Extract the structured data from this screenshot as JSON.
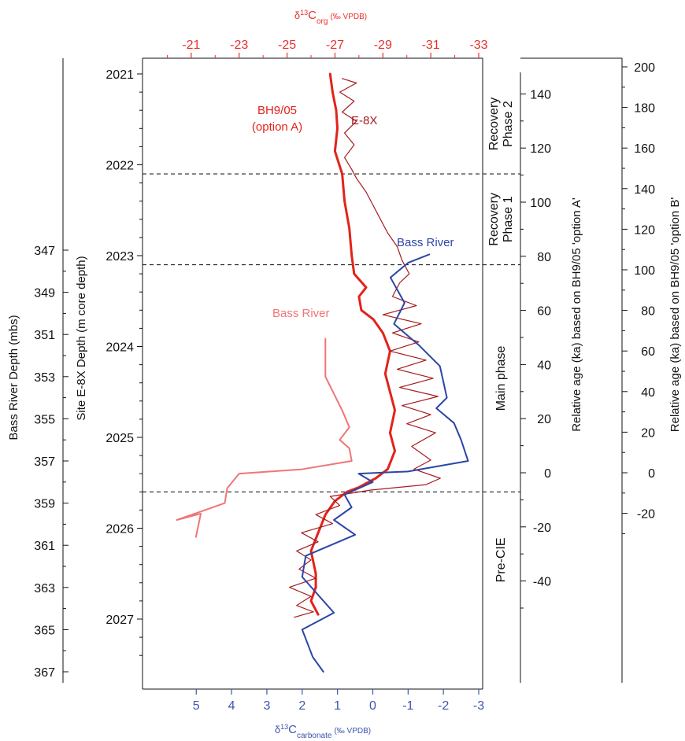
{
  "chart_data": {
    "type": "line",
    "title": "",
    "colors": {
      "bh905": "#e2231a",
      "e8x": "#a51c20",
      "bass_river_carb": "#2b46a8",
      "bass_river_org": "#f07575",
      "top_axis": "#e8302a",
      "bottom_axis": "#3b55b0",
      "ink": "#111111"
    },
    "axes": {
      "top": {
        "label_main": "δ",
        "label_sup": "13",
        "label_c": "C",
        "label_sub": "org",
        "label_unit": "(‰ VPDB)",
        "range": [
          -19,
          -33
        ],
        "ticks": [
          -21,
          -23,
          -25,
          -27,
          -29,
          -31,
          -33
        ],
        "tick_labels": [
          "-21",
          "-23",
          "-25",
          "-27",
          "-29",
          "-31",
          "-33"
        ]
      },
      "bottom": {
        "label_main": "δ",
        "label_sup": "13",
        "label_c": "C",
        "label_sub": "carbonate",
        "label_unit": "(‰ VPDB)",
        "range": [
          6.5,
          -3
        ],
        "ticks": [
          5,
          4,
          3,
          2,
          1,
          0,
          -1,
          -2,
          -3
        ],
        "tick_labels": [
          "5",
          "4",
          "3",
          "2",
          "1",
          "0",
          "-1",
          "-2",
          "-3"
        ]
      },
      "left_outer": {
        "label": "Bass River Depth (mbs)",
        "ticks": [
          347,
          349,
          351,
          353,
          355,
          357,
          359,
          361,
          363,
          365,
          367
        ],
        "tick_labels": [
          "347",
          "349",
          "351",
          "353",
          "355",
          "357",
          "359",
          "361",
          "363",
          "365",
          "367"
        ]
      },
      "left_inner": {
        "label": "Site E-8X Depth (m core depth)",
        "ticks": [
          2021,
          2022,
          2023,
          2024,
          2025,
          2026,
          2027
        ],
        "tick_labels": [
          "2021",
          "2022",
          "2023",
          "2024",
          "2025",
          "2026",
          "2027"
        ]
      },
      "right_a": {
        "label": "Relative age (ka) based on BH9/05 'option A'",
        "ticks": [
          140,
          120,
          100,
          80,
          60,
          40,
          20,
          0,
          -20,
          -40
        ],
        "tick_labels": [
          "140",
          "120",
          "100",
          "80",
          "60",
          "40",
          "20",
          "0",
          "-20",
          "-40"
        ]
      },
      "right_b": {
        "label": "Relative age (ka) based on BH9/05 'option B'",
        "ticks": [
          200,
          180,
          160,
          140,
          120,
          100,
          80,
          60,
          40,
          20,
          0,
          -20
        ],
        "tick_labels": [
          "200",
          "180",
          "160",
          "140",
          "120",
          "100",
          "80",
          "60",
          "40",
          "20",
          "0",
          "-20"
        ]
      }
    },
    "phases": [
      {
        "line1": "Recovery",
        "line2": "Phase 2",
        "top_m": 2021,
        "bottom_m": 2022.1
      },
      {
        "line1": "Recovery",
        "line2": "Phase 1",
        "top_m": 2022.1,
        "bottom_m": 2023.1
      },
      {
        "line1": "Main phase",
        "line2": "",
        "top_m": 2023.1,
        "bottom_m": 2025.6
      },
      {
        "line1": "Pre-CIE",
        "line2": "",
        "top_m": 2025.6,
        "bottom_m": 2027.5
      }
    ],
    "boundaries_m": [
      2022.1,
      2023.1,
      2025.6
    ],
    "annotations": {
      "bh905_line1": "BH9/05",
      "bh905_line2": "(option A)",
      "e8x": "E-8X",
      "bass_river_blue": "Bass River",
      "bass_river_pink": "Bass River"
    },
    "series": [
      {
        "name": "BH9/05 (option A)",
        "axis": "top",
        "points": [
          [
            -26.8,
            2021
          ],
          [
            -26.9,
            2021.2
          ],
          [
            -27.05,
            2021.4
          ],
          [
            -27.1,
            2021.6
          ],
          [
            -27.0,
            2021.85
          ],
          [
            -27.3,
            2022.1
          ],
          [
            -27.4,
            2022.4
          ],
          [
            -27.6,
            2022.7
          ],
          [
            -27.7,
            2023.0
          ],
          [
            -27.8,
            2023.2
          ],
          [
            -28.3,
            2023.35
          ],
          [
            -28.0,
            2023.45
          ],
          [
            -28.1,
            2023.6
          ],
          [
            -28.6,
            2023.7
          ],
          [
            -29.0,
            2023.85
          ],
          [
            -29.3,
            2024.05
          ],
          [
            -29.1,
            2024.3
          ],
          [
            -29.3,
            2024.5
          ],
          [
            -29.5,
            2024.7
          ],
          [
            -29.3,
            2024.95
          ],
          [
            -29.5,
            2025.15
          ],
          [
            -29.2,
            2025.35
          ],
          [
            -28.7,
            2025.45
          ],
          [
            -28.0,
            2025.55
          ],
          [
            -27.5,
            2025.6
          ],
          [
            -27.0,
            2025.7
          ],
          [
            -26.6,
            2025.85
          ],
          [
            -26.3,
            2026.05
          ],
          [
            -26.0,
            2026.25
          ],
          [
            -26.2,
            2026.5
          ],
          [
            -26.2,
            2026.65
          ],
          [
            -26.0,
            2026.8
          ],
          [
            -26.3,
            2026.95
          ]
        ]
      },
      {
        "name": "E-8X",
        "axis": "top",
        "points": [
          [
            -27.3,
            2021.05
          ],
          [
            -27.9,
            2021.1
          ],
          [
            -27.2,
            2021.2
          ],
          [
            -27.8,
            2021.3
          ],
          [
            -27.3,
            2021.42
          ],
          [
            -27.9,
            2021.52
          ],
          [
            -27.4,
            2021.65
          ],
          [
            -27.8,
            2021.78
          ],
          [
            -27.4,
            2021.92
          ],
          [
            -27.7,
            2022.05
          ],
          [
            -27.9,
            2022.15
          ],
          [
            -28.3,
            2022.3
          ],
          [
            -28.6,
            2022.45
          ],
          [
            -28.9,
            2022.6
          ],
          [
            -29.2,
            2022.75
          ],
          [
            -29.6,
            2022.9
          ],
          [
            -29.8,
            2023.05
          ],
          [
            -30.1,
            2023.2
          ],
          [
            -29.7,
            2023.3
          ],
          [
            -29.4,
            2023.45
          ],
          [
            -30.4,
            2023.55
          ],
          [
            -29.0,
            2023.65
          ],
          [
            -30.6,
            2023.75
          ],
          [
            -29.4,
            2023.85
          ],
          [
            -30.5,
            2023.95
          ],
          [
            -29.3,
            2024.05
          ],
          [
            -30.8,
            2024.15
          ],
          [
            -29.6,
            2024.25
          ],
          [
            -31.1,
            2024.35
          ],
          [
            -29.7,
            2024.45
          ],
          [
            -31.3,
            2024.55
          ],
          [
            -29.8,
            2024.65
          ],
          [
            -31.0,
            2024.75
          ],
          [
            -30.0,
            2024.85
          ],
          [
            -31.2,
            2024.95
          ],
          [
            -30.2,
            2025.1
          ],
          [
            -31.0,
            2025.25
          ],
          [
            -30.3,
            2025.35
          ],
          [
            -31.4,
            2025.45
          ],
          [
            -30.8,
            2025.52
          ],
          [
            -28.5,
            2025.58
          ],
          [
            -26.8,
            2025.65
          ],
          [
            -27.2,
            2025.75
          ],
          [
            -26.2,
            2025.85
          ],
          [
            -26.9,
            2025.95
          ],
          [
            -25.6,
            2026.05
          ],
          [
            -26.3,
            2026.15
          ],
          [
            -25.4,
            2026.25
          ],
          [
            -26.0,
            2026.35
          ],
          [
            -25.5,
            2026.45
          ],
          [
            -26.2,
            2026.55
          ],
          [
            -25.1,
            2026.65
          ],
          [
            -26.0,
            2026.75
          ],
          [
            -25.4,
            2026.85
          ],
          [
            -26.1,
            2026.92
          ],
          [
            -25.3,
            2026.98
          ]
        ]
      },
      {
        "name": "Bass River (carbonate)",
        "axis": "bottom",
        "points": [
          [
            -1.6,
            347.2
          ],
          [
            -1.0,
            347.6
          ],
          [
            -0.5,
            348.3
          ],
          [
            -0.9,
            349.5
          ],
          [
            -0.6,
            350.5
          ],
          [
            -1.3,
            351.5
          ],
          [
            -1.9,
            352.5
          ],
          [
            -2.1,
            354.0
          ],
          [
            -1.8,
            354.5
          ],
          [
            -2.3,
            355.2
          ],
          [
            -2.5,
            356.0
          ],
          [
            -2.7,
            357.0
          ],
          [
            -1.0,
            357.5
          ],
          [
            0.4,
            357.6
          ],
          [
            0.0,
            358.0
          ],
          [
            0.8,
            358.6
          ],
          [
            0.6,
            359.2
          ],
          [
            1.1,
            359.8
          ],
          [
            0.5,
            360.5
          ],
          [
            1.9,
            361.5
          ],
          [
            2.0,
            362.5
          ],
          [
            1.1,
            364.2
          ],
          [
            2.0,
            365.0
          ],
          [
            1.7,
            366.3
          ],
          [
            1.4,
            367.0
          ]
        ]
      },
      {
        "name": "Bass River (organic)",
        "axis": "top",
        "points": [
          [
            -26.6,
            351.2
          ],
          [
            -26.6,
            353.0
          ],
          [
            -27.3,
            354.6
          ],
          [
            -27.6,
            355.4
          ],
          [
            -27.2,
            356.0
          ],
          [
            -27.6,
            356.4
          ],
          [
            -27.7,
            357.0
          ],
          [
            -25.6,
            357.4
          ],
          [
            -23.0,
            357.6
          ],
          [
            -22.5,
            358.3
          ],
          [
            -22.4,
            359.0
          ],
          [
            -20.4,
            359.8
          ],
          [
            -21.4,
            359.5
          ],
          [
            -21.2,
            360.6
          ]
        ]
      }
    ]
  }
}
